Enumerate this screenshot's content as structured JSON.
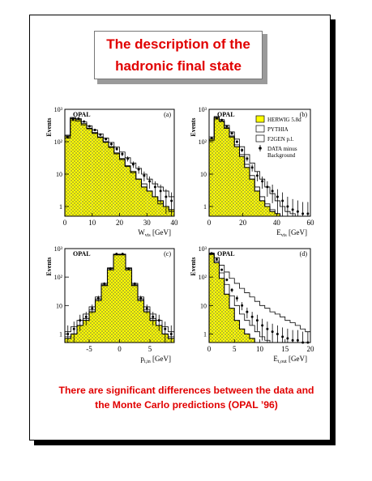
{
  "title": {
    "line1": "The description of the",
    "line2": "hadronic final state"
  },
  "caption": {
    "line1": "There are significant differences between the data and",
    "line2": "the Monte Carlo predictions (OPAL ’96)"
  },
  "legend": {
    "entries": [
      "HERWIG 5.8d",
      "PYTHIA",
      "F2GEN p.l.",
      "DATA minus",
      "Background"
    ],
    "colors": {
      "herwig": "#ffff00",
      "outline": "#000000"
    }
  },
  "chart_data": [
    {
      "type": "histogram",
      "panel": "(a)",
      "experiment": "OPAL",
      "ylabel": "Events",
      "xlabel": "W",
      "xlabel_sub": "vis",
      "xlabel_unit": "[GeV]",
      "xlim": [
        0,
        40
      ],
      "ylim_log10": [
        -0.3,
        3
      ],
      "xticks": [
        0,
        10,
        20,
        30,
        40
      ],
      "yticks": [
        "1",
        "10",
        "10²",
        "10³"
      ],
      "x": [
        1,
        3,
        5,
        7,
        9,
        11,
        13,
        15,
        17,
        19,
        21,
        23,
        25,
        27,
        29,
        31,
        33,
        35,
        37,
        39
      ],
      "series": [
        {
          "name": "HERWIG",
          "values": [
            150,
            520,
            480,
            360,
            260,
            190,
            140,
            100,
            70,
            45,
            30,
            18,
            12,
            7,
            4,
            3,
            2,
            1.5,
            1,
            0.8
          ]
        },
        {
          "name": "PYTHIA",
          "values": [
            130,
            450,
            430,
            330,
            250,
            180,
            135,
            95,
            66,
            42,
            28,
            17,
            11,
            7,
            5,
            3,
            2,
            1.2,
            1,
            0.7
          ]
        },
        {
          "name": "F2GEN p.l.",
          "values": [
            160,
            560,
            520,
            410,
            310,
            230,
            175,
            130,
            95,
            68,
            48,
            32,
            22,
            15,
            10,
            7,
            5,
            4,
            3,
            2
          ]
        },
        {
          "name": "DATA minus Background",
          "values": [
            140,
            500,
            520,
            420,
            300,
            230,
            165,
            120,
            85,
            60,
            42,
            30,
            20,
            14,
            9,
            6,
            4,
            3,
            2,
            1.5
          ]
        }
      ]
    },
    {
      "type": "histogram",
      "panel": "(b)",
      "experiment": "OPAL",
      "ylabel": "Events",
      "xlabel": "E",
      "xlabel_sub": "vis",
      "xlabel_unit": "[GeV]",
      "xlim": [
        0,
        60
      ],
      "ylim_log10": [
        -0.3,
        3
      ],
      "xticks": [
        0,
        20,
        40,
        60
      ],
      "yticks": [
        "1",
        "10",
        "10²",
        "10³"
      ],
      "x": [
        1.5,
        4.5,
        7.5,
        10.5,
        13.5,
        16.5,
        19.5,
        22.5,
        25.5,
        28.5,
        31.5,
        34.5,
        37.5,
        40.5,
        43.5,
        46.5,
        49.5,
        52.5,
        55.5,
        58.5
      ],
      "series": [
        {
          "name": "HERWIG",
          "values": [
            120,
            560,
            430,
            260,
            140,
            70,
            35,
            16,
            7,
            3,
            1.5,
            1,
            0.7,
            0.6,
            0.5,
            0.5,
            0.5,
            0.5,
            0.5,
            0.5
          ]
        },
        {
          "name": "PYTHIA",
          "values": [
            110,
            500,
            420,
            270,
            150,
            80,
            40,
            20,
            9,
            4,
            2,
            1.2,
            0.8,
            0.6,
            0.5,
            0.5,
            0.5,
            0.5,
            0.5,
            0.5
          ]
        },
        {
          "name": "F2GEN p.l.",
          "values": [
            140,
            600,
            480,
            320,
            200,
            120,
            70,
            40,
            22,
            12,
            7,
            4,
            2.5,
            1.5,
            1,
            0.7,
            0.6,
            0.5,
            0.5,
            0.5
          ]
        },
        {
          "name": "DATA minus Background",
          "values": [
            130,
            540,
            470,
            300,
            180,
            100,
            55,
            30,
            16,
            9,
            6,
            4,
            3,
            2,
            1.5,
            1,
            0.8,
            0.7,
            0.6,
            0.6
          ]
        }
      ]
    },
    {
      "type": "histogram",
      "panel": "(c)",
      "experiment": "OPAL",
      "ylabel": "Events",
      "xlabel": "p",
      "xlabel_sub": "t,in",
      "xlabel_unit": "[GeV]",
      "xlim": [
        -9,
        9
      ],
      "ylim_log10": [
        -0.3,
        3
      ],
      "xticks": [
        -5,
        0,
        5
      ],
      "yticks": [
        "1",
        "10",
        "10²",
        "10³"
      ],
      "x": [
        -8.5,
        -7.5,
        -6.5,
        -5.5,
        -4.5,
        -3.5,
        -2.5,
        -1.5,
        -0.5,
        0.5,
        1.5,
        2.5,
        3.5,
        4.5,
        5.5,
        6.5,
        7.5,
        8.5
      ],
      "series": [
        {
          "name": "HERWIG",
          "values": [
            0.7,
            1,
            2,
            3,
            6,
            15,
            50,
            180,
            620,
            620,
            180,
            50,
            15,
            6,
            3,
            2,
            1,
            0.7
          ]
        },
        {
          "name": "PYTHIA",
          "values": [
            0.8,
            1,
            2,
            3.5,
            7,
            17,
            55,
            200,
            600,
            600,
            200,
            55,
            17,
            7,
            3.5,
            2,
            1,
            0.8
          ]
        },
        {
          "name": "F2GEN p.l.",
          "values": [
            1.2,
            1.8,
            3,
            5,
            9,
            20,
            60,
            210,
            640,
            640,
            210,
            60,
            20,
            9,
            5,
            3,
            1.8,
            1.2
          ]
        },
        {
          "name": "DATA minus Background",
          "values": [
            1,
            1.5,
            3,
            4,
            8,
            18,
            58,
            200,
            650,
            650,
            200,
            58,
            18,
            8,
            4,
            3,
            1.5,
            1
          ]
        }
      ]
    },
    {
      "type": "histogram",
      "panel": "(d)",
      "experiment": "OPAL",
      "ylabel": "Events",
      "xlabel": "E",
      "xlabel_sub": "t,out",
      "xlabel_unit": "[GeV]",
      "xlim": [
        0,
        20
      ],
      "ylim_log10": [
        -0.3,
        3
      ],
      "xticks": [
        0,
        5,
        10,
        15,
        20
      ],
      "yticks": [
        "1",
        "10",
        "10²",
        "10³"
      ],
      "x": [
        0.5,
        1.5,
        2.5,
        3.5,
        4.5,
        5.5,
        6.5,
        7.5,
        8.5,
        9.5,
        10.5,
        11.5,
        12.5,
        13.5,
        14.5,
        15.5,
        16.5,
        17.5,
        18.5,
        19.5
      ],
      "series": [
        {
          "name": "HERWIG",
          "values": [
            650,
            320,
            90,
            25,
            8,
            3,
            1.5,
            1,
            0.7,
            0.5,
            0.5,
            0.5,
            0.5,
            0.5,
            0.5,
            0.5,
            0.5,
            0.5,
            0.5,
            0.5
          ]
        },
        {
          "name": "PYTHIA",
          "values": [
            620,
            360,
            140,
            55,
            22,
            10,
            5,
            3,
            2,
            1.2,
            0.8,
            0.6,
            0.5,
            0.5,
            0.5,
            0.5,
            0.5,
            0.5,
            0.5,
            0.5
          ]
        },
        {
          "name": "F2GEN p.l.",
          "values": [
            700,
            480,
            260,
            150,
            90,
            60,
            40,
            28,
            20,
            14,
            10,
            8,
            6,
            5,
            4,
            3,
            2.5,
            2,
            1.5,
            1.2
          ]
        },
        {
          "name": "DATA minus Background",
          "values": [
            680,
            420,
            180,
            80,
            35,
            18,
            10,
            6,
            4,
            3,
            2,
            1.5,
            1.2,
            1,
            0.8,
            0.7,
            0.6,
            0.6,
            0.5,
            0.5
          ]
        }
      ]
    }
  ]
}
